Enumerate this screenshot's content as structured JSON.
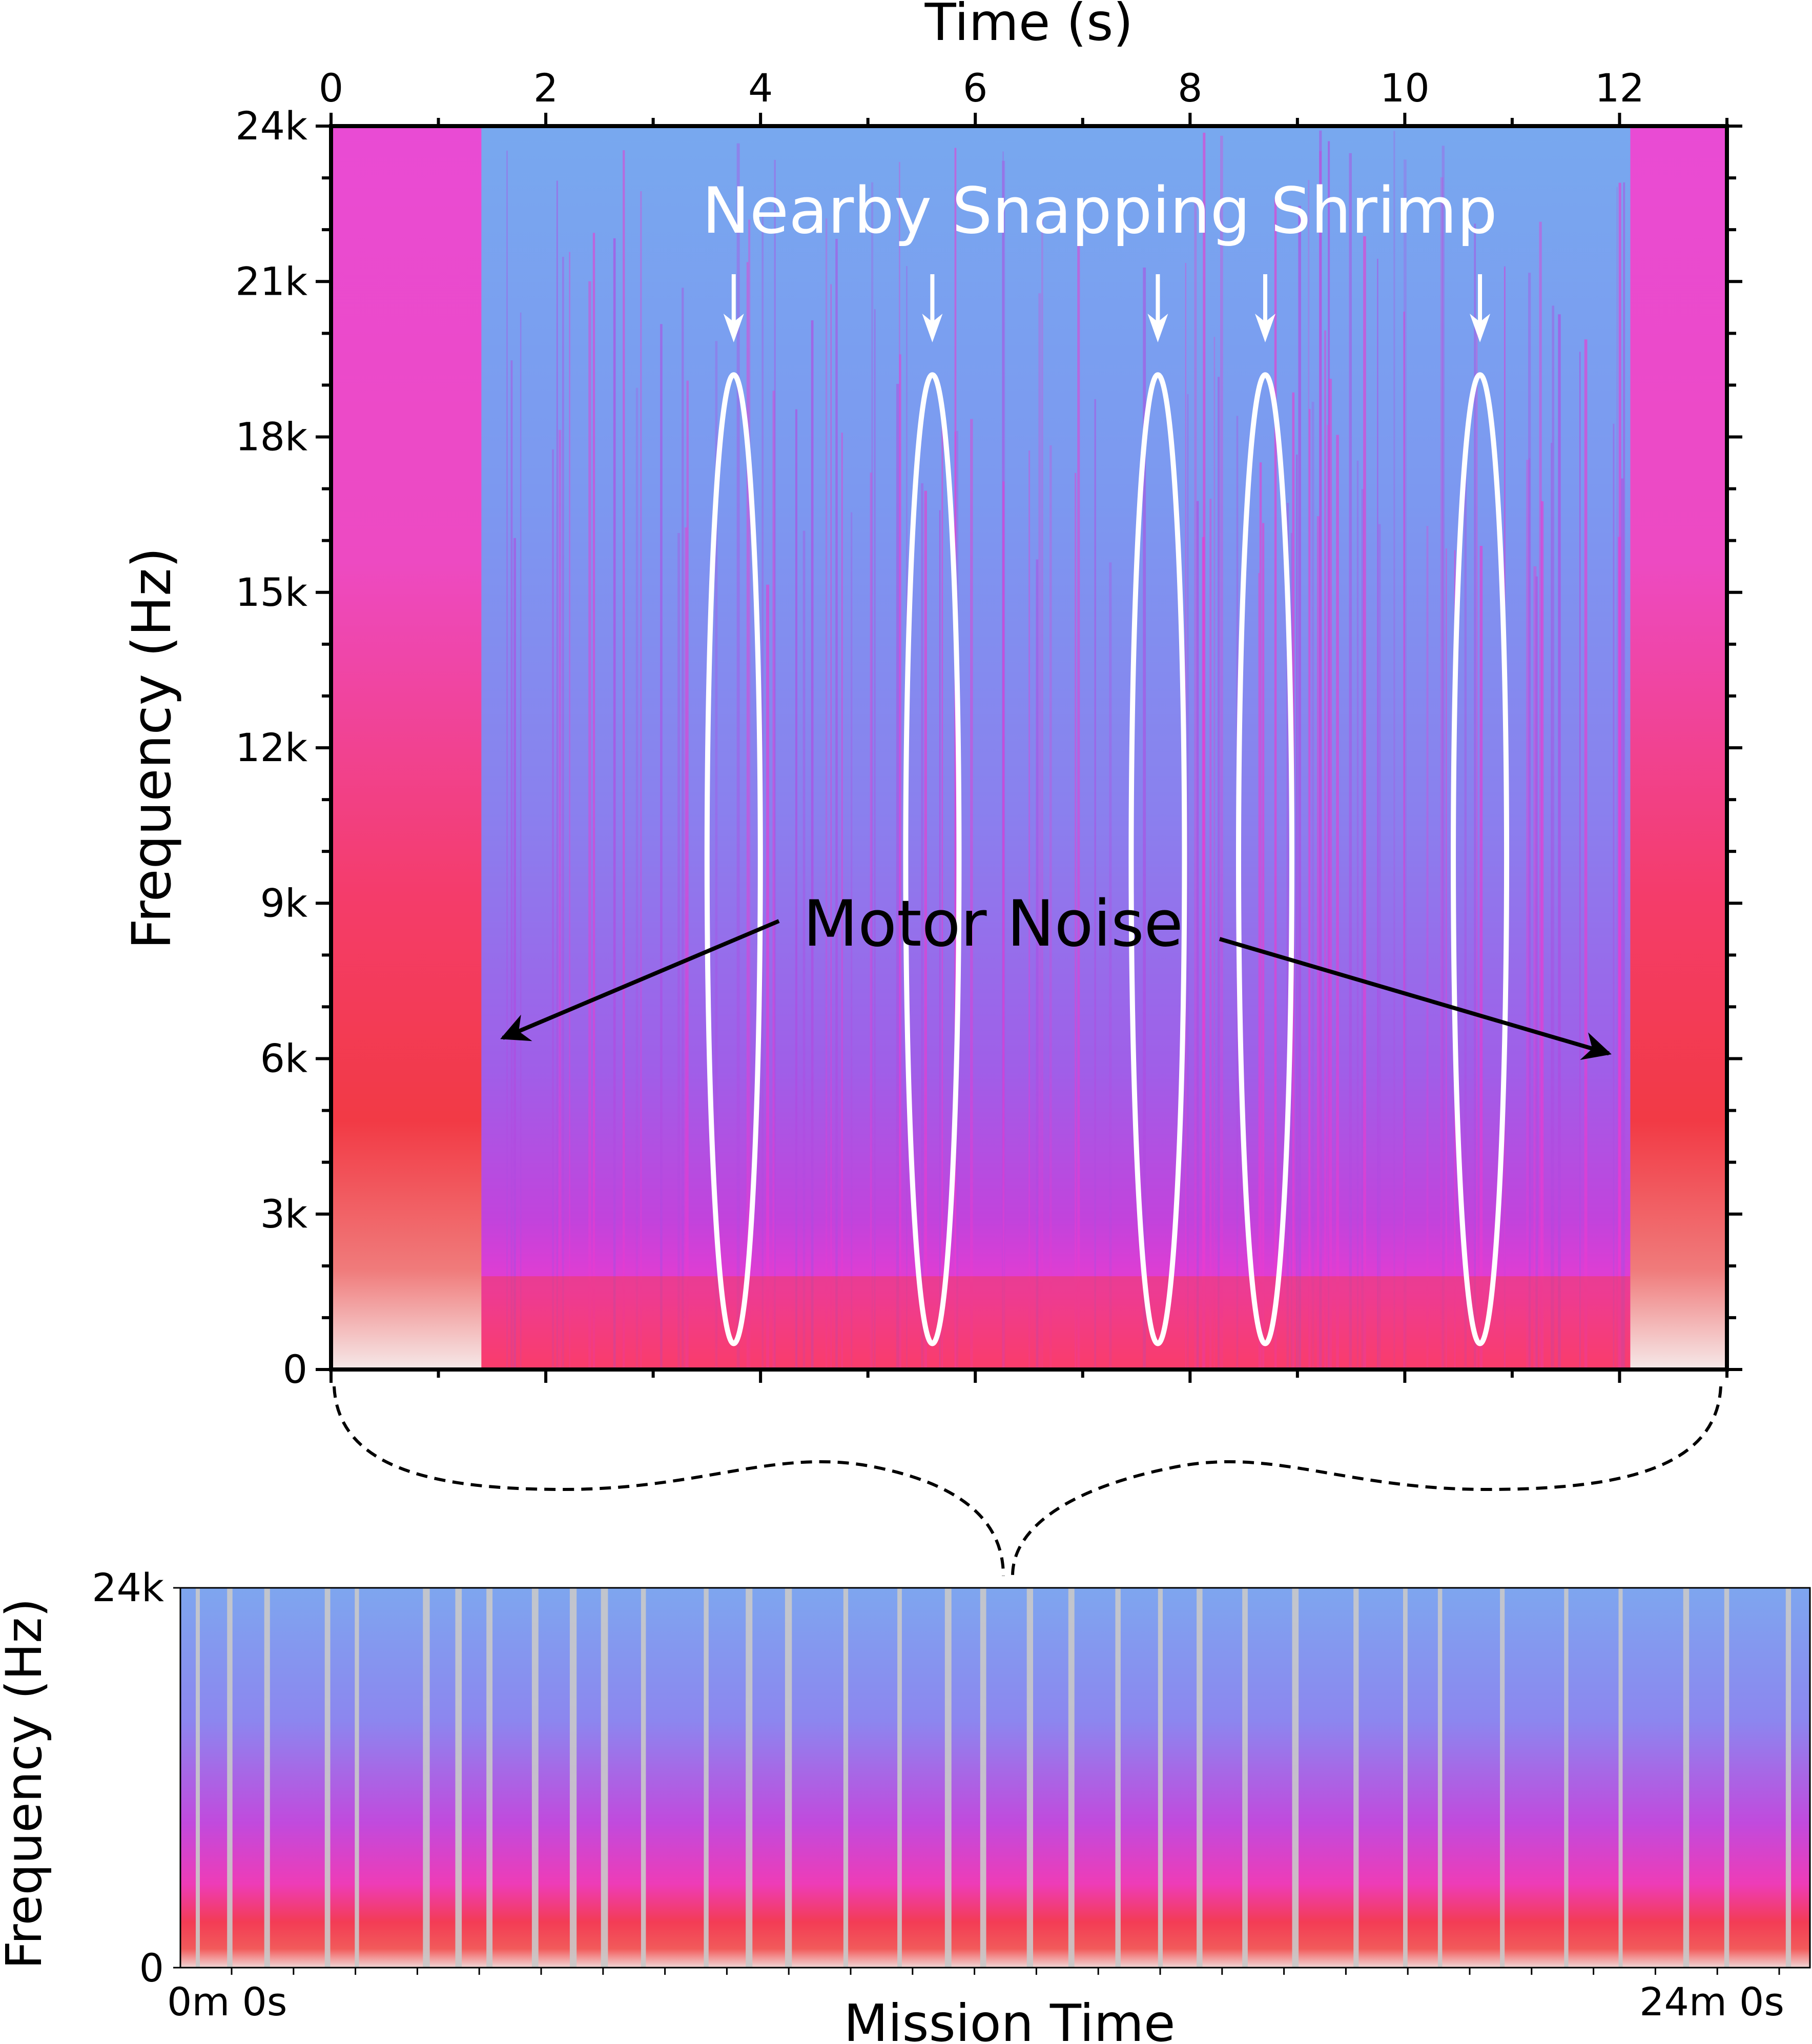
{
  "colors": {
    "spec_high": "#f43c45",
    "spec_mid": "#e93bd0",
    "spec_low": "#7c8ff0",
    "spec_sky": "#78a8ef",
    "gap": "#c9c9c9",
    "annotation_white": "#ffffff",
    "annotation_black": "#000000"
  },
  "chart_data": [
    {
      "type": "heatmap",
      "title": "",
      "xlabel": "Time (s)",
      "ylabel": "Frequency (Hz)",
      "xlim": [
        0,
        13
      ],
      "ylim": [
        0,
        24000
      ],
      "x_ticks": [
        0,
        2,
        4,
        6,
        8,
        10,
        12
      ],
      "x_tick_labels": [
        "0",
        "2",
        "4",
        "6",
        "8",
        "10",
        "12"
      ],
      "y_ticks": [
        0,
        3000,
        6000,
        9000,
        12000,
        15000,
        18000,
        21000,
        24000
      ],
      "y_tick_labels": [
        "0",
        "3k",
        "6k",
        "9k",
        "12k",
        "15k",
        "18k",
        "21k",
        "24k"
      ],
      "motor_noise_intervals": [
        [
          0,
          1.4
        ],
        [
          12.1,
          13
        ]
      ],
      "shrimp_annotation": {
        "label": "Nearby Snapping Shrimp",
        "times": [
          3.75,
          5.6,
          7.7,
          8.7,
          10.7
        ],
        "freq_range": [
          500,
          19200
        ]
      },
      "motor_annotation": {
        "label": "Motor Noise",
        "targets": [
          [
            1.6,
            6400
          ],
          [
            11.9,
            6100
          ]
        ]
      }
    },
    {
      "type": "heatmap",
      "title": "",
      "xlabel": "Mission Time",
      "ylabel": "Frequency (Hz)",
      "ylim": [
        0,
        24000
      ],
      "y_tick_labels": [
        "0",
        "24k"
      ],
      "x_tick_labels": [
        "0m 0s",
        "24m 0s"
      ],
      "zoom_source_fraction": 0.5
    }
  ]
}
